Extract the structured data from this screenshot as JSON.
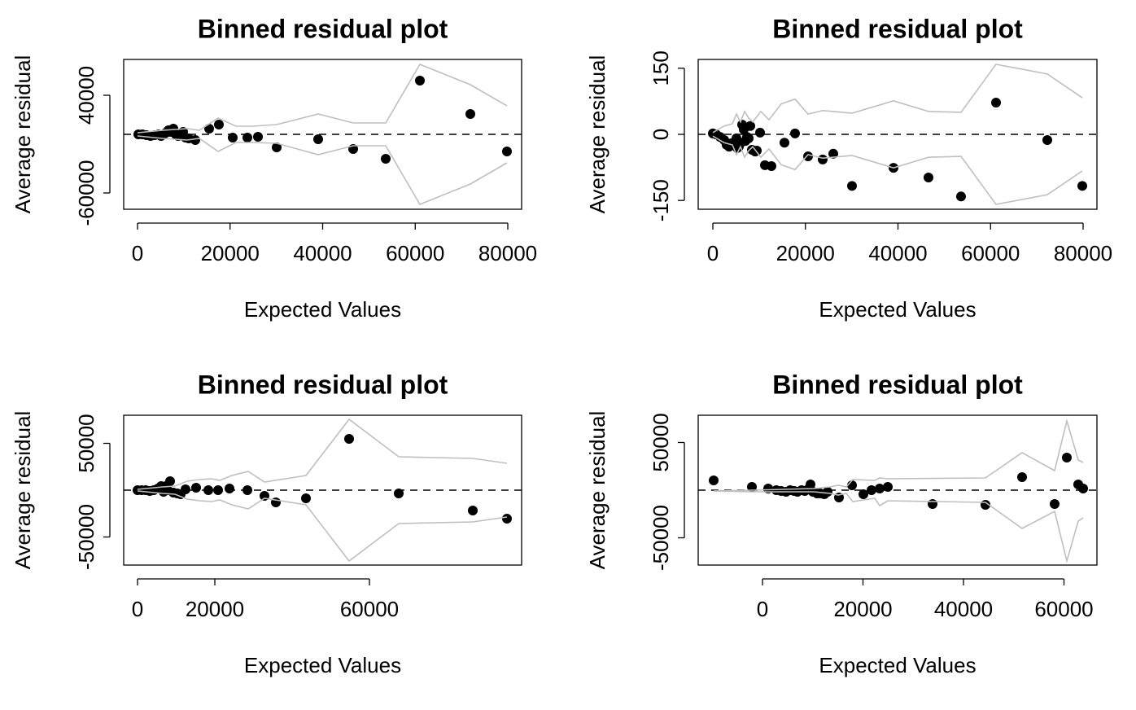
{
  "chart_data": [
    {
      "type": "scatter",
      "title": "Binned residual plot",
      "xlabel": "Expected Values",
      "ylabel": "Average residual",
      "xlim": [
        -2989,
        82989
      ],
      "ylim": [
        -76667,
        76667
      ],
      "xticks": [
        0,
        20000,
        40000,
        60000,
        80000
      ],
      "yticks": [
        -60000,
        40000
      ],
      "hline": 0,
      "series": [
        {
          "mode": "points",
          "color": "#000000",
          "x": [
            176,
            1055,
            1934,
            2813,
            3692,
            4571,
            5099,
            5626,
            6154,
            6681,
            7209,
            7736,
            8264,
            8791,
            9319,
            9846,
            10374,
            11077,
            12484,
            15473,
            17582,
            20571,
            23736,
            26022,
            30066,
            39033,
            46593,
            53626,
            61011,
            71912,
            79824
          ],
          "values": [
            0,
            0,
            -833,
            -1667,
            -833,
            0,
            -1667,
            0,
            1667,
            4167,
            2500,
            5833,
            0,
            -1667,
            -833,
            2500,
            -3333,
            -4167,
            -5833,
            5833,
            10000,
            -3333,
            -3333,
            -2500,
            -13333,
            -5000,
            -15000,
            -25000,
            55000,
            20833,
            -17500
          ]
        },
        {
          "mode": "lines",
          "color": "#bfbfbf",
          "x": [
            0,
            5450,
            10725,
            13363,
            17407,
            21275,
            24791,
            30066,
            39033,
            46593,
            53626,
            61011,
            71912,
            79824
          ],
          "values": [
            1667,
            4167,
            5833,
            4167,
            16667,
            8333,
            8333,
            10000,
            20833,
            11667,
            11667,
            71667,
            50833,
            29167
          ]
        },
        {
          "mode": "lines",
          "color": "#bfbfbf",
          "x": [
            0,
            5450,
            10725,
            13363,
            17407,
            21275,
            24791,
            30066,
            39033,
            46593,
            53626,
            61011,
            71912,
            79824
          ],
          "values": [
            -1667,
            -4167,
            -5833,
            -4167,
            -17500,
            -8333,
            -8333,
            -9167,
            -20833,
            -11667,
            -11667,
            -71667,
            -50833,
            -29167
          ]
        }
      ]
    },
    {
      "type": "scatter",
      "title": "Binned residual plot",
      "xlabel": "Expected Values",
      "ylabel": "Average residual",
      "xlim": [
        -3165,
        82989
      ],
      "ylim": [
        -170,
        170
      ],
      "xticks": [
        0,
        20000,
        40000,
        60000,
        80000
      ],
      "yticks": [
        -150,
        0,
        150
      ],
      "hline": 0,
      "series": [
        {
          "mode": "points",
          "color": "#000000",
          "x": [
            0,
            703,
            1582,
            2462,
            2989,
            3516,
            4044,
            4571,
            5099,
            5275,
            5626,
            5978,
            6330,
            6681,
            7033,
            7385,
            7736,
            8088,
            8440,
            9143,
            9495,
            10198,
            11253,
            12659,
            15473,
            17758,
            20571,
            23736,
            26022,
            30066,
            39033,
            46593,
            53626,
            61187,
            72264,
            79824
          ],
          "values": [
            2,
            0,
            -6,
            -13,
            -24,
            -28,
            -20,
            -22,
            -9,
            -31,
            -28,
            -20,
            22,
            11,
            -15,
            -6,
            -9,
            19,
            -35,
            -39,
            -37,
            4,
            -70,
            -72,
            -19,
            2,
            -50,
            -57,
            -44,
            -117,
            -76,
            -98,
            -141,
            72,
            -13,
            -117
          ]
        },
        {
          "mode": "lines",
          "color": "#bfbfbf",
          "x": [
            0,
            2462,
            4220,
            5099,
            5978,
            6857,
            7736,
            8615,
            10374,
            12132,
            14769,
            17758,
            20571,
            23736,
            30066,
            39033,
            46593,
            53626,
            61187,
            72264,
            79824
          ],
          "values": [
            4,
            19,
            24,
            46,
            28,
            52,
            37,
            28,
            52,
            33,
            69,
            80,
            46,
            54,
            48,
            76,
            52,
            50,
            159,
            137,
            83
          ]
        },
        {
          "mode": "lines",
          "color": "#bfbfbf",
          "x": [
            0,
            2462,
            4220,
            5099,
            5978,
            6857,
            7736,
            8615,
            10374,
            12132,
            14769,
            17758,
            20571,
            23736,
            30066,
            39033,
            46593,
            53626,
            61187,
            72264,
            79824
          ],
          "values": [
            -4,
            -19,
            -24,
            -46,
            -28,
            -52,
            -37,
            -28,
            -52,
            -33,
            -69,
            -80,
            -46,
            -54,
            -48,
            -76,
            -52,
            -50,
            -159,
            -137,
            -83
          ]
        }
      ]
    },
    {
      "type": "scatter",
      "title": "Binned residual plot",
      "xlabel": "Expected Values",
      "ylabel": "Average residual",
      "xlim": [
        -3579,
        99368
      ],
      "ylim": [
        -80000,
        80000
      ],
      "xticks": [
        0,
        20000,
        60000
      ],
      "yticks": [
        -50000,
        50000
      ],
      "hline": 0,
      "series": [
        {
          "mode": "points",
          "color": "#000000",
          "x": [
            0,
            1053,
            2105,
            3158,
            4211,
            5263,
            6105,
            6737,
            7368,
            7789,
            8421,
            9263,
            10316,
            11158,
            12421,
            15158,
            18316,
            20842,
            23789,
            28421,
            32842,
            35789,
            43579,
            54737,
            67579,
            86737,
            95579
          ],
          "values": [
            0,
            0,
            0,
            -870,
            0,
            1739,
            4348,
            -1739,
            4348,
            0,
            9565,
            -2609,
            -3478,
            -4348,
            870,
            2609,
            0,
            0,
            1739,
            0,
            -6087,
            -13043,
            -8696,
            54783,
            -3478,
            -21739,
            -30435
          ]
        },
        {
          "mode": "lines",
          "color": "#bfbfbf",
          "x": [
            0,
            6526,
            9684,
            12842,
            16000,
            19158,
            21263,
            24421,
            28632,
            32842,
            43579,
            54737,
            67579,
            86737,
            95579
          ],
          "values": [
            870,
            3478,
            4348,
            9565,
            11304,
            12174,
            10435,
            15652,
            20000,
            8696,
            15652,
            75652,
            35652,
            33913,
            28696
          ]
        },
        {
          "mode": "lines",
          "color": "#bfbfbf",
          "x": [
            0,
            6526,
            9684,
            12842,
            16000,
            19158,
            21263,
            24421,
            28632,
            32842,
            43579,
            54737,
            67579,
            86737,
            95579
          ],
          "values": [
            -870,
            -3478,
            -4348,
            -9565,
            -11304,
            -12174,
            -10435,
            -15652,
            -20000,
            -8696,
            -15652,
            -75652,
            -35652,
            -33913,
            -28696
          ]
        }
      ]
    },
    {
      "type": "scatter",
      "title": "Binned residual plot",
      "xlabel": "Expected Values",
      "ylabel": "Average residual",
      "xlim": [
        -12794,
        66559
      ],
      "ylim": [
        -78600,
        78600
      ],
      "xticks": [
        0,
        20000,
        40000,
        60000
      ],
      "yticks": [
        -50000,
        50000
      ],
      "hline": 0,
      "series": [
        {
          "mode": "points",
          "color": "#000000",
          "x": [
            -9717,
            -2105,
            1134,
            2753,
            3725,
            4696,
            5506,
            6316,
            6964,
            7773,
            8421,
            9069,
            9555,
            10040,
            10850,
            11498,
            12308,
            12955,
            15223,
            17814,
            20081,
            21700,
            23320,
            24939,
            33846,
            44372,
            51660,
            58138,
            60567,
            62834,
            63806
          ],
          "values": [
            10256,
            3419,
            1709,
            0,
            -855,
            -1709,
            0,
            -855,
            -1709,
            0,
            -855,
            855,
            5983,
            -1709,
            -3419,
            -3419,
            -4274,
            -1709,
            -7692,
            5128,
            -4274,
            0,
            1709,
            3419,
            -14530,
            -15385,
            13675,
            -14530,
            34188,
            5983,
            1709
          ]
        },
        {
          "mode": "lines",
          "color": "#bfbfbf",
          "x": [
            -9717,
            -1943,
            10202,
            13441,
            15061,
            16680,
            17976,
            22348,
            23320,
            24939,
            44372,
            51660,
            58138,
            60567,
            62834,
            63806
          ],
          "values": [
            -855,
            0,
            1709,
            3419,
            5128,
            3419,
            11111,
            10256,
            12821,
            11966,
            12821,
            39316,
            20513,
            72650,
            31624,
            29060
          ]
        },
        {
          "mode": "lines",
          "color": "#bfbfbf",
          "x": [
            -9717,
            -1943,
            10202,
            13441,
            15061,
            16680,
            17976,
            22348,
            23320,
            24939,
            44372,
            51660,
            58138,
            60567,
            62834,
            63806
          ],
          "values": [
            -855,
            -1709,
            -1709,
            -3419,
            -5128,
            -3419,
            -11966,
            -8547,
            -16239,
            -11111,
            -12821,
            -40171,
            -22222,
            -74359,
            -32479,
            -29060
          ]
        }
      ]
    }
  ]
}
